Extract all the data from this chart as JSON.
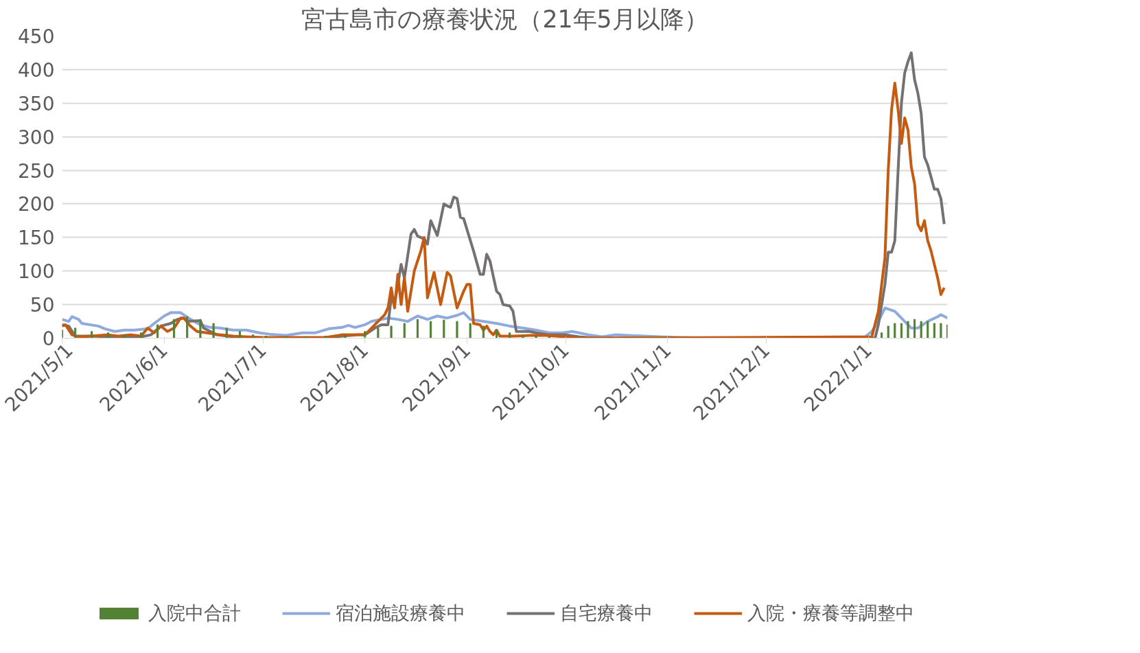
{
  "chart_data": {
    "type": "bar",
    "title": "宮古島市の療養状況（21年5月以降）",
    "xlim": [
      "2021-05-01",
      "2022-01-25"
    ],
    "xticks": [
      {
        "value": "2021-05-01",
        "label": "2021/5/1"
      },
      {
        "value": "2021-06-01",
        "label": "2021/6/1"
      },
      {
        "value": "2021-07-01",
        "label": "2021/7/1"
      },
      {
        "value": "2021-08-01",
        "label": "2021/8/1"
      },
      {
        "value": "2021-09-01",
        "label": "2021/9/1"
      },
      {
        "value": "2021-10-01",
        "label": "2021/10/1"
      },
      {
        "value": "2021-11-01",
        "label": "2021/11/1"
      },
      {
        "value": "2021-12-01",
        "label": "2021/12/1"
      },
      {
        "value": "2022-01-01",
        "label": "2022/1/1"
      }
    ],
    "ylim": [
      0,
      450
    ],
    "yticks": [
      0,
      50,
      100,
      150,
      200,
      250,
      300,
      350,
      400,
      450
    ],
    "grid": "y",
    "legend": "bottom",
    "series": [
      {
        "name": "入院中合計",
        "color": "#548235",
        "x": [
          "2021-05-01",
          "2021-05-05",
          "2021-05-10",
          "2021-05-15",
          "2021-05-20",
          "2021-05-25",
          "2021-05-30",
          "2021-06-04",
          "2021-06-08",
          "2021-06-12",
          "2021-06-16",
          "2021-06-20",
          "2021-06-24",
          "2021-06-28",
          "2021-07-02",
          "2021-07-08",
          "2021-07-14",
          "2021-07-20",
          "2021-07-26",
          "2021-08-01",
          "2021-08-05",
          "2021-08-09",
          "2021-08-13",
          "2021-08-17",
          "2021-08-21",
          "2021-08-25",
          "2021-08-29",
          "2021-09-02",
          "2021-09-06",
          "2021-09-10",
          "2021-09-14",
          "2021-09-18",
          "2021-09-22",
          "2021-09-26",
          "2021-10-01",
          "2022-01-05",
          "2022-01-07",
          "2022-01-09",
          "2022-01-11",
          "2022-01-13",
          "2022-01-15",
          "2022-01-17",
          "2022-01-19",
          "2022-01-21",
          "2022-01-23",
          "2022-01-25"
        ],
        "values": [
          12,
          15,
          10,
          8,
          5,
          8,
          20,
          28,
          32,
          28,
          22,
          15,
          10,
          5,
          3,
          2,
          2,
          3,
          5,
          10,
          15,
          18,
          22,
          28,
          25,
          27,
          25,
          22,
          18,
          12,
          8,
          5,
          3,
          2,
          null,
          8,
          18,
          22,
          22,
          25,
          28,
          25,
          25,
          22,
          22,
          20
        ]
      },
      {
        "name": "宿泊施設療養中",
        "type": "line",
        "color": "#8faadc",
        "x": [
          "2021-05-01",
          "2021-05-03",
          "2021-05-04",
          "2021-05-06",
          "2021-05-07",
          "2021-05-12",
          "2021-05-14",
          "2021-05-17",
          "2021-05-20",
          "2021-05-23",
          "2021-05-27",
          "2021-05-29",
          "2021-06-01",
          "2021-06-03",
          "2021-06-06",
          "2021-06-09",
          "2021-06-12",
          "2021-06-15",
          "2021-06-18",
          "2021-06-22",
          "2021-06-26",
          "2021-06-30",
          "2021-07-03",
          "2021-07-08",
          "2021-07-13",
          "2021-07-17",
          "2021-07-21",
          "2021-07-25",
          "2021-07-27",
          "2021-07-29",
          "2021-08-01",
          "2021-08-03",
          "2021-08-08",
          "2021-08-11",
          "2021-08-14",
          "2021-08-17",
          "2021-08-20",
          "2021-08-23",
          "2021-08-26",
          "2021-08-29",
          "2021-08-31",
          "2021-09-02",
          "2021-09-06",
          "2021-09-10",
          "2021-09-14",
          "2021-09-18",
          "2021-09-22",
          "2021-09-26",
          "2021-09-30",
          "2021-10-03",
          "2021-10-08",
          "2021-10-12",
          "2021-10-16",
          "2021-10-20",
          "2021-10-25",
          "2021-10-30",
          "2021-11-05",
          "2021-11-15",
          "2021-12-31",
          "2022-01-02",
          "2022-01-04",
          "2022-01-06",
          "2022-01-09",
          "2022-01-12",
          "2022-01-14",
          "2022-01-16",
          "2022-01-19",
          "2022-01-22",
          "2022-01-23",
          "2022-01-25"
        ],
        "values": [
          28,
          25,
          32,
          28,
          22,
          18,
          14,
          10,
          12,
          12,
          14,
          22,
          33,
          38,
          38,
          28,
          20,
          16,
          15,
          12,
          12,
          8,
          6,
          4,
          8,
          8,
          14,
          16,
          19,
          16,
          20,
          25,
          30,
          28,
          25,
          33,
          28,
          33,
          30,
          34,
          38,
          28,
          25,
          22,
          18,
          15,
          12,
          8,
          8,
          10,
          5,
          2,
          5,
          4,
          3,
          2,
          1,
          0,
          2,
          10,
          25,
          45,
          40,
          25,
          15,
          15,
          25,
          32,
          35,
          30
        ]
      },
      {
        "name": "自宅療養中",
        "type": "line",
        "color": "#767171",
        "x": [
          "2021-05-01",
          "2021-05-03",
          "2021-05-05",
          "2021-05-10",
          "2021-05-15",
          "2021-05-20",
          "2021-05-25",
          "2021-05-28",
          "2021-05-31",
          "2021-06-03",
          "2021-06-05",
          "2021-06-07",
          "2021-06-08",
          "2021-06-12",
          "2021-06-13",
          "2021-06-17",
          "2021-06-22",
          "2021-06-27",
          "2021-07-20",
          "2021-07-25",
          "2021-07-30",
          "2021-08-01",
          "2021-08-04",
          "2021-08-06",
          "2021-08-08",
          "2021-08-09",
          "2021-08-10",
          "2021-08-12",
          "2021-08-13",
          "2021-08-15",
          "2021-08-16",
          "2021-08-17",
          "2021-08-19",
          "2021-08-20",
          "2021-08-21",
          "2021-08-23",
          "2021-08-25",
          "2021-08-26",
          "2021-08-27",
          "2021-08-28",
          "2021-08-29",
          "2021-08-30",
          "2021-08-31",
          "2021-09-03",
          "2021-09-05",
          "2021-09-06",
          "2021-09-07",
          "2021-09-08",
          "2021-09-10",
          "2021-09-11",
          "2021-09-12",
          "2021-09-14",
          "2021-09-15",
          "2021-09-16",
          "2021-09-20",
          "2021-09-22",
          "2021-09-26",
          "2021-10-01",
          "2021-10-05",
          "2021-10-10",
          "2022-01-03",
          "2022-01-04",
          "2022-01-06",
          "2022-01-07",
          "2022-01-08",
          "2022-01-09",
          "2022-01-10",
          "2022-01-11",
          "2022-01-12",
          "2022-01-13",
          "2022-01-14",
          "2022-01-15",
          "2022-01-16",
          "2022-01-17",
          "2022-01-18",
          "2022-01-19",
          "2022-01-20",
          "2022-01-21",
          "2022-01-22",
          "2022-01-23",
          "2022-01-24"
        ],
        "values": [
          20,
          18,
          3,
          3,
          2,
          1,
          2,
          5,
          18,
          22,
          28,
          30,
          25,
          26,
          15,
          5,
          2,
          0,
          0,
          3,
          5,
          5,
          15,
          20,
          20,
          60,
          50,
          110,
          90,
          155,
          162,
          152,
          148,
          140,
          175,
          153,
          200,
          197,
          195,
          210,
          208,
          180,
          178,
          130,
          95,
          95,
          125,
          115,
          70,
          65,
          50,
          48,
          40,
          10,
          10,
          8,
          5,
          5,
          2,
          0,
          0,
          20,
          80,
          128,
          128,
          145,
          250,
          350,
          395,
          412,
          425,
          385,
          365,
          335,
          270,
          258,
          240,
          222,
          222,
          208,
          170
        ]
      },
      {
        "name": "入院・療養等調整中",
        "type": "line",
        "color": "#c55a11",
        "x": [
          "2021-05-01",
          "2021-05-02",
          "2021-05-04",
          "2021-05-06",
          "2021-05-10",
          "2021-05-15",
          "2021-05-18",
          "2021-05-22",
          "2021-05-25",
          "2021-05-27",
          "2021-05-29",
          "2021-05-31",
          "2021-06-02",
          "2021-06-04",
          "2021-06-06",
          "2021-06-07",
          "2021-06-09",
          "2021-06-11",
          "2021-06-14",
          "2021-06-18",
          "2021-06-22",
          "2021-06-26",
          "2021-07-01",
          "2021-07-10",
          "2021-07-20",
          "2021-07-25",
          "2021-07-28",
          "2021-08-01",
          "2021-08-03",
          "2021-08-05",
          "2021-08-07",
          "2021-08-08",
          "2021-08-09",
          "2021-08-10",
          "2021-08-11",
          "2021-08-12",
          "2021-08-13",
          "2021-08-14",
          "2021-08-16",
          "2021-08-18",
          "2021-08-19",
          "2021-08-20",
          "2021-08-22",
          "2021-08-24",
          "2021-08-26",
          "2021-08-27",
          "2021-08-29",
          "2021-08-31",
          "2021-09-01",
          "2021-09-02",
          "2021-09-03",
          "2021-09-05",
          "2021-09-06",
          "2021-09-07",
          "2021-09-08",
          "2021-09-09",
          "2021-09-10",
          "2021-09-11",
          "2021-09-15",
          "2021-09-20",
          "2021-09-25",
          "2021-10-01",
          "2021-10-05",
          "2022-01-02",
          "2022-01-04",
          "2022-01-06",
          "2022-01-07",
          "2022-01-08",
          "2022-01-09",
          "2022-01-10",
          "2022-01-11",
          "2022-01-12",
          "2022-01-13",
          "2022-01-14",
          "2022-01-15",
          "2022-01-16",
          "2022-01-17",
          "2022-01-18",
          "2022-01-19",
          "2022-01-20",
          "2022-01-22",
          "2022-01-23",
          "2022-01-24"
        ],
        "values": [
          18,
          20,
          5,
          2,
          3,
          5,
          3,
          5,
          3,
          15,
          8,
          18,
          10,
          15,
          30,
          30,
          18,
          10,
          8,
          5,
          3,
          2,
          1,
          1,
          1,
          5,
          5,
          5,
          15,
          25,
          35,
          45,
          75,
          45,
          95,
          50,
          90,
          40,
          100,
          130,
          150,
          60,
          98,
          50,
          98,
          93,
          45,
          70,
          80,
          80,
          22,
          20,
          12,
          18,
          10,
          5,
          12,
          3,
          3,
          4,
          4,
          2,
          0,
          2,
          40,
          120,
          250,
          340,
          380,
          340,
          290,
          328,
          310,
          255,
          230,
          170,
          160,
          175,
          145,
          130,
          90,
          65,
          75
        ]
      }
    ]
  }
}
